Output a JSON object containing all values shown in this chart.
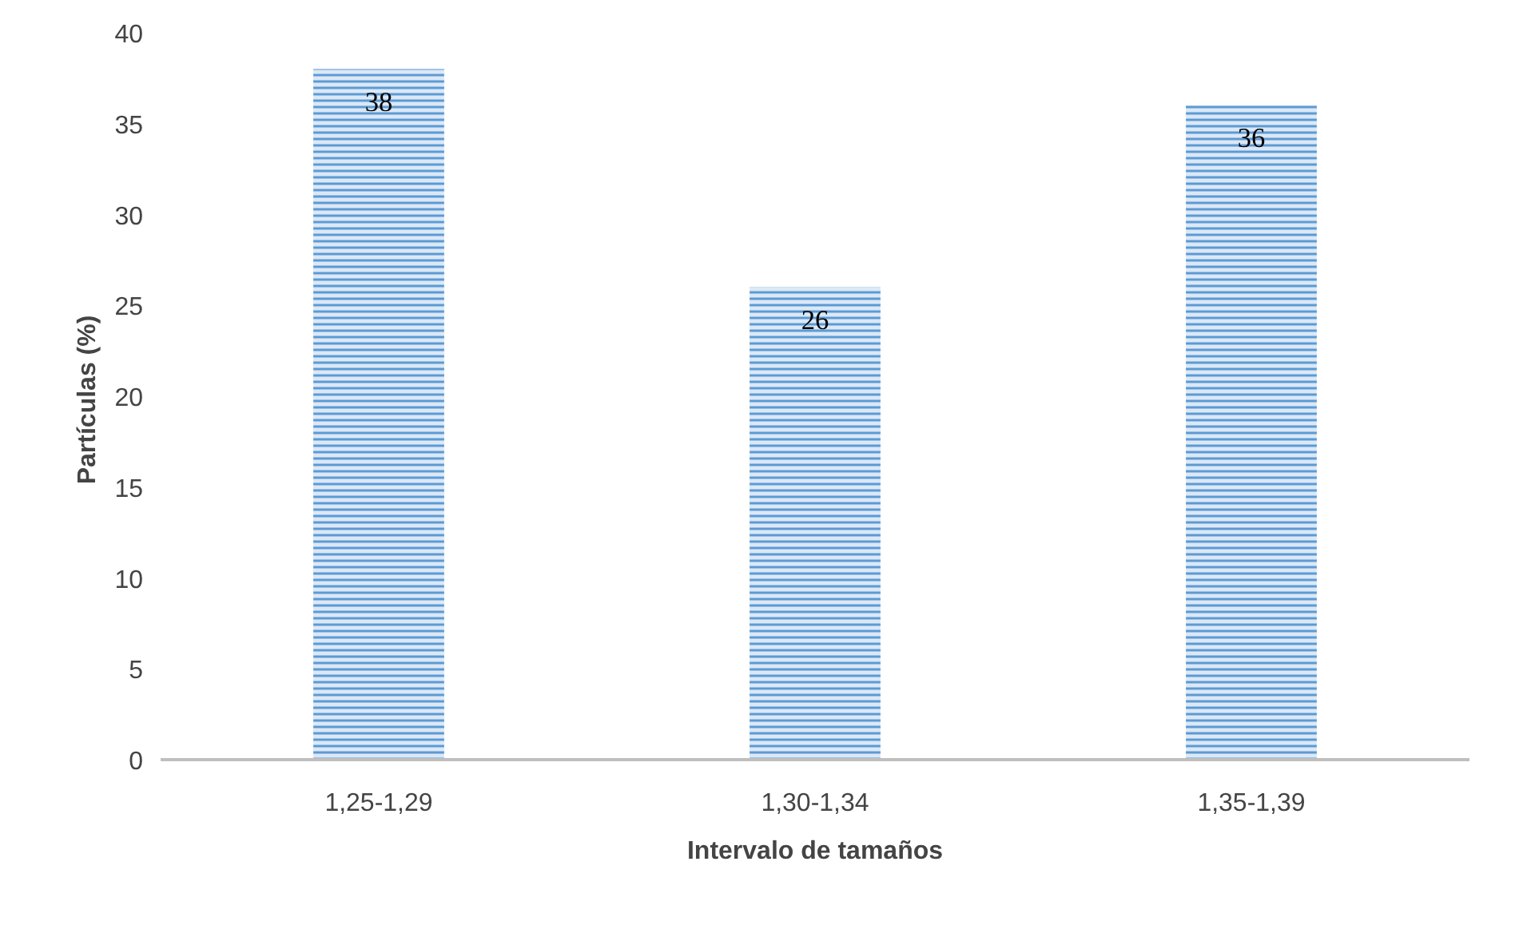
{
  "chart_data": {
    "type": "bar",
    "xlabel": "Intervalo de tamaños",
    "ylabel": "Partículas  (%)",
    "categories": [
      "1,25-1,29",
      "1,30-1,34",
      "1,35-1,39"
    ],
    "values": [
      38,
      26,
      36
    ],
    "color": "#5b9bd5",
    "ylim": [
      0,
      40
    ],
    "yticks": [
      0,
      5,
      10,
      15,
      20,
      25,
      30,
      35,
      40
    ],
    "grid": false,
    "data_labels": true
  }
}
